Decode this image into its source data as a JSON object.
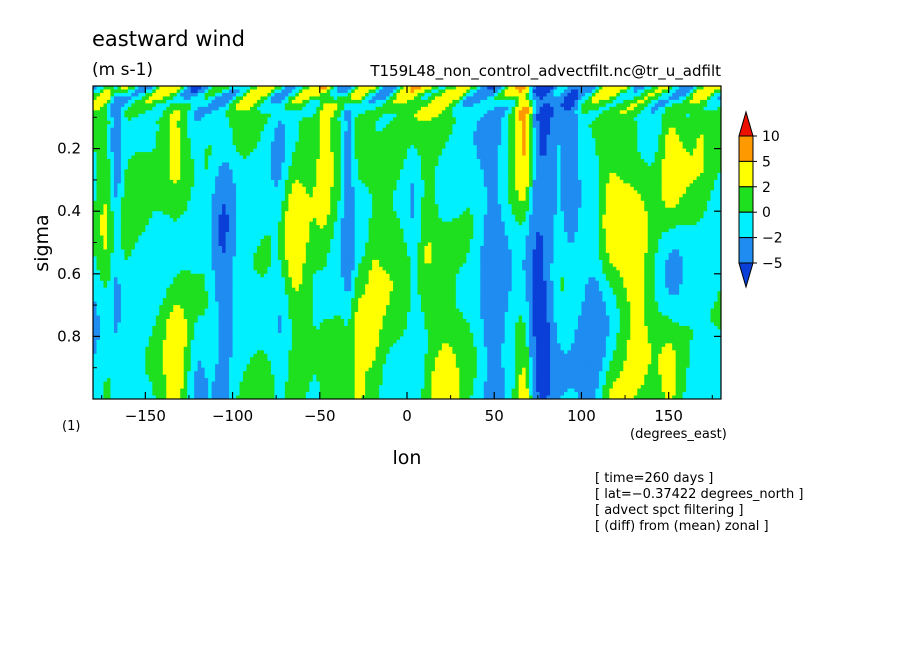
{
  "chart_data": {
    "type": "heatmap",
    "title": "eastward wind",
    "units": "(m s-1)",
    "source": "T159L48_non_control_advectfilt.nc@tr_u_adfilt",
    "xlabel": "lon",
    "ylabel": "sigma",
    "x_units": "(degrees_east)",
    "y_units": "(1)",
    "xlim": [
      -180,
      180
    ],
    "ylim": [
      1.0,
      0.0
    ],
    "x_ticks": [
      -150,
      -100,
      -50,
      0,
      50,
      100,
      150
    ],
    "x_tick_labels": [
      "−150",
      "−100",
      "−50",
      "0",
      "50",
      "100",
      "150"
    ],
    "y_ticks": [
      0.2,
      0.4,
      0.6,
      0.8
    ],
    "y_tick_labels": [
      "0.2",
      "0.4",
      "0.6",
      "0.8"
    ],
    "grid": false,
    "colorbar": {
      "placement": "right",
      "levels": [
        -5,
        -2,
        0,
        2,
        5,
        10
      ],
      "labels": [
        "10",
        "5",
        "2",
        "0",
        "−2",
        "−5"
      ],
      "colors": [
        "#0a3fd8",
        "#1e8cf0",
        "#00f0ff",
        "#1ee01e",
        "#ffff00",
        "#ff9900",
        "#ee1100"
      ]
    },
    "info_lines": [
      "[ time=260 days ]",
      "[ lat=−0.37422 degrees_north ]",
      "[ advect spct filtering ]",
      "[ (diff) from (mean) zonal ]"
    ]
  }
}
